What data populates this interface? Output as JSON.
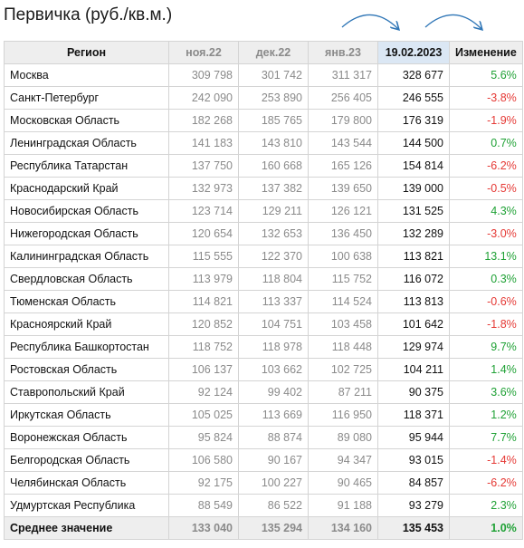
{
  "title": "Первичка (руб./кв.м.)",
  "headers": [
    "Регион",
    "ноя.22",
    "дек.22",
    "янв.23",
    "19.02.2023",
    "Изменение"
  ],
  "rows": [
    {
      "region": "Москва",
      "nov": "309 798",
      "dec": "301 742",
      "jan": "311 317",
      "cur": "328 677",
      "change": "5.6%",
      "dir": "pos"
    },
    {
      "region": "Санкт-Петербург",
      "nov": "242 090",
      "dec": "253 890",
      "jan": "256 405",
      "cur": "246 555",
      "change": "-3.8%",
      "dir": "neg"
    },
    {
      "region": "Московская Область",
      "nov": "182 268",
      "dec": "185 765",
      "jan": "179 800",
      "cur": "176 319",
      "change": "-1.9%",
      "dir": "neg"
    },
    {
      "region": "Ленинградская Область",
      "nov": "141 183",
      "dec": "143 810",
      "jan": "143 544",
      "cur": "144 500",
      "change": "0.7%",
      "dir": "pos"
    },
    {
      "region": "Республика Татарстан",
      "nov": "137 750",
      "dec": "160 668",
      "jan": "165 126",
      "cur": "154 814",
      "change": "-6.2%",
      "dir": "neg"
    },
    {
      "region": "Краснодарский Край",
      "nov": "132 973",
      "dec": "137 382",
      "jan": "139 650",
      "cur": "139 000",
      "change": "-0.5%",
      "dir": "neg"
    },
    {
      "region": "Новосибирская Область",
      "nov": "123 714",
      "dec": "129 211",
      "jan": "126 121",
      "cur": "131 525",
      "change": "4.3%",
      "dir": "pos"
    },
    {
      "region": "Нижегородская Область",
      "nov": "120 654",
      "dec": "132 653",
      "jan": "136 450",
      "cur": "132 289",
      "change": "-3.0%",
      "dir": "neg"
    },
    {
      "region": "Калининградская Область",
      "nov": "115 555",
      "dec": "122 370",
      "jan": "100 638",
      "cur": "113 821",
      "change": "13.1%",
      "dir": "pos"
    },
    {
      "region": "Свердловская Область",
      "nov": "113 979",
      "dec": "118 804",
      "jan": "115 752",
      "cur": "116 072",
      "change": "0.3%",
      "dir": "pos"
    },
    {
      "region": "Тюменская Область",
      "nov": "114 821",
      "dec": "113 337",
      "jan": "114 524",
      "cur": "113 813",
      "change": "-0.6%",
      "dir": "neg"
    },
    {
      "region": "Красноярский Край",
      "nov": "120 852",
      "dec": "104 751",
      "jan": "103 458",
      "cur": "101 642",
      "change": "-1.8%",
      "dir": "neg"
    },
    {
      "region": "Республика Башкортостан",
      "nov": "118 752",
      "dec": "118 978",
      "jan": "118 448",
      "cur": "129 974",
      "change": "9.7%",
      "dir": "pos"
    },
    {
      "region": "Ростовская Область",
      "nov": "106 137",
      "dec": "103 662",
      "jan": "102 725",
      "cur": "104 211",
      "change": "1.4%",
      "dir": "pos"
    },
    {
      "region": "Ставропольский Край",
      "nov": "92 124",
      "dec": "99 402",
      "jan": "87 211",
      "cur": "90 375",
      "change": "3.6%",
      "dir": "pos"
    },
    {
      "region": "Иркутская Область",
      "nov": "105 025",
      "dec": "113 669",
      "jan": "116 950",
      "cur": "118 371",
      "change": "1.2%",
      "dir": "pos"
    },
    {
      "region": "Воронежская Область",
      "nov": "95 824",
      "dec": "88 874",
      "jan": "89 080",
      "cur": "95 944",
      "change": "7.7%",
      "dir": "pos"
    },
    {
      "region": "Белгородская Область",
      "nov": "106 580",
      "dec": "90 167",
      "jan": "94 347",
      "cur": "93 015",
      "change": "-1.4%",
      "dir": "neg"
    },
    {
      "region": "Челябинская Область",
      "nov": "92 175",
      "dec": "100 227",
      "jan": "90 465",
      "cur": "84 857",
      "change": "-6.2%",
      "dir": "neg"
    },
    {
      "region": "Удмуртская Республика",
      "nov": "88 549",
      "dec": "86 522",
      "jan": "91 188",
      "cur": "93 279",
      "change": "2.3%",
      "dir": "pos"
    }
  ],
  "footer": {
    "region": "Среднее значение",
    "nov": "133 040",
    "dec": "135 294",
    "jan": "134 160",
    "cur": "135 453",
    "change": "1.0%",
    "dir": "pos"
  },
  "colors": {
    "positive": "#1fa135",
    "negative": "#e53935",
    "arrow": "#2e75b6",
    "highlight_header": "#dbe7f4"
  }
}
